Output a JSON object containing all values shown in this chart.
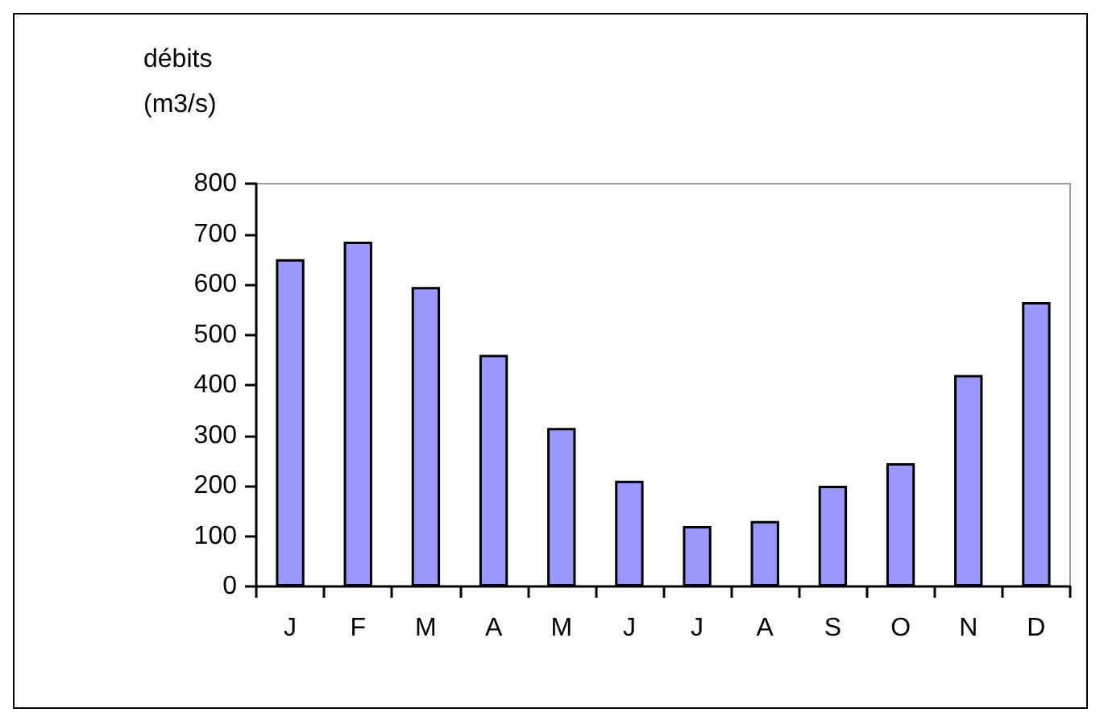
{
  "chart_data": {
    "type": "bar",
    "ylabel": "débits\n(m3/s)",
    "categories": [
      "J",
      "F",
      "M",
      "A",
      "M",
      "J",
      "J",
      "A",
      "S",
      "O",
      "N",
      "D"
    ],
    "values": [
      650,
      685,
      595,
      460,
      315,
      210,
      120,
      130,
      200,
      245,
      420,
      565
    ],
    "color": "#9999ff",
    "ylim": [
      0,
      800
    ],
    "yticks": [
      0,
      100,
      200,
      300,
      400,
      500,
      600,
      700,
      800
    ],
    "grid": false
  }
}
